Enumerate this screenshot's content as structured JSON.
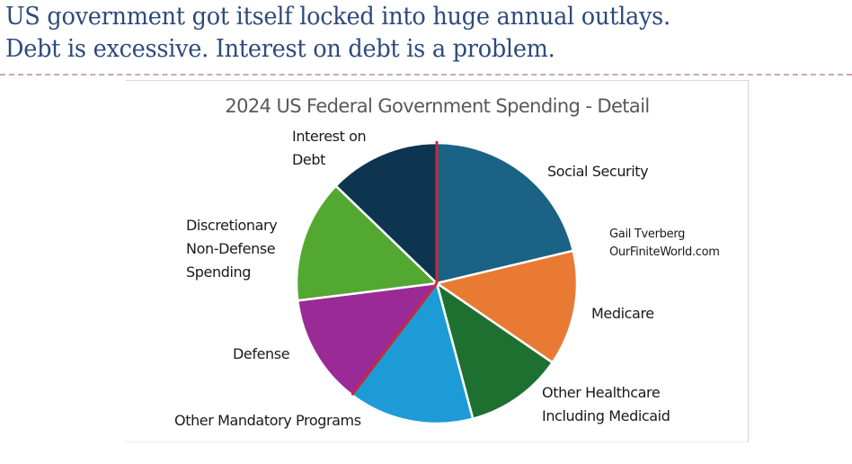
{
  "headline": {
    "line1": "US government got itself locked into huge annual outlays.",
    "line2": "Debt is excessive. Interest on debt is a problem."
  },
  "attribution": {
    "author": "Gail Tverberg",
    "site": "OurFiniteWorld.com"
  },
  "colors": {
    "headline": "#2d4a7a",
    "divider": "#cfa6ac",
    "highlight_line": "#c8283a"
  },
  "chart_data": {
    "type": "pie",
    "title": "2024 US Federal Government Spending - Detail",
    "start_angle_deg": 0,
    "direction": "clockwise",
    "unit": "percent of total (estimated from slice angles)",
    "slices": [
      {
        "label": "Social Security",
        "label_lines": [
          "Social Security"
        ],
        "value": 21.3,
        "color": "#1a6286"
      },
      {
        "label": "Medicare",
        "label_lines": [
          "Medicare"
        ],
        "value": 13.3,
        "color": "#e97a34"
      },
      {
        "label": "Other Healthcare Including Medicaid",
        "label_lines": [
          "Other Healthcare",
          "Including Medicaid"
        ],
        "value": 11.3,
        "color": "#1e7030"
      },
      {
        "label": "Other Mandatory Programs",
        "label_lines": [
          "Other Mandatory Programs"
        ],
        "value": 14.5,
        "color": "#1d9bd6"
      },
      {
        "label": "Defense",
        "label_lines": [
          "Defense"
        ],
        "value": 12.7,
        "color": "#9a2b96"
      },
      {
        "label": "Discretionary Non-Defense Spending",
        "label_lines": [
          "Discretionary",
          "Non-Defense",
          "Spending"
        ],
        "value": 14.2,
        "color": "#53a832"
      },
      {
        "label": "Interest on Debt",
        "label_lines": [
          "Interest on",
          "Debt"
        ],
        "value": 12.8,
        "color": "#0e3550"
      }
    ],
    "highlight_boundaries": [
      "start of Social Security",
      "between Other Mandatory Programs and Defense"
    ],
    "legend": "none (direct labels)"
  }
}
